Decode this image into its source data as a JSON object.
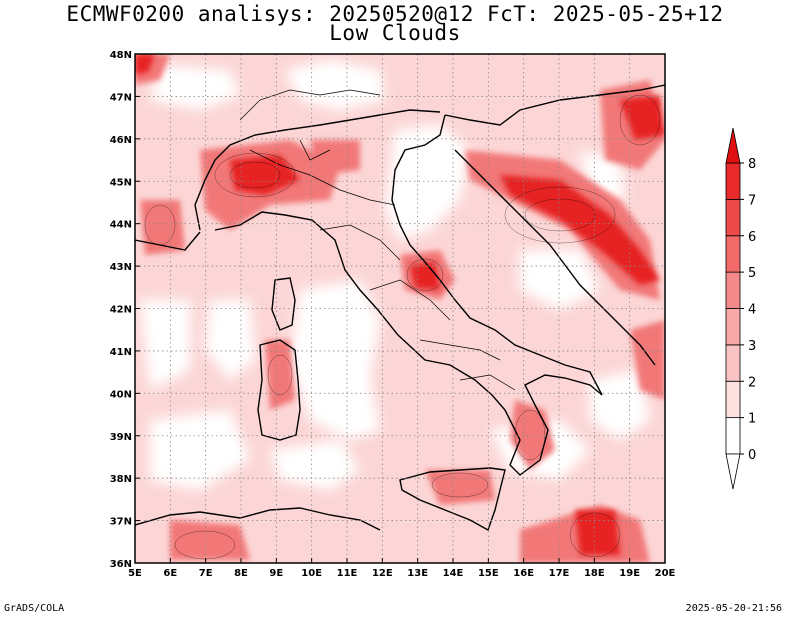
{
  "title": "ECMWF0200 analisys: 20250520@12 FcT: 2025-05-25+12",
  "subtitle": "Low Clouds",
  "credit": "GrADS/COLA",
  "timestamp": "2025-05-20-21:56",
  "map": {
    "lon_range": [
      5,
      20
    ],
    "lat_range": [
      36,
      48
    ],
    "lon_labels": [
      "5E",
      "6E",
      "7E",
      "8E",
      "9E",
      "10E",
      "11E",
      "12E",
      "13E",
      "14E",
      "15E",
      "16E",
      "17E",
      "18E",
      "19E",
      "20E"
    ],
    "lat_labels": [
      "36N",
      "37N",
      "38N",
      "39N",
      "40N",
      "41N",
      "42N",
      "43N",
      "44N",
      "45N",
      "46N",
      "47N",
      "48N"
    ],
    "grid": "dotted",
    "colors": {
      "land_outline": "#000000",
      "contour": "#000000"
    }
  },
  "colorbar": {
    "levels": [
      "0",
      "1",
      "2",
      "3",
      "4",
      "5",
      "6",
      "7",
      "8"
    ],
    "colors": [
      "#ffffff",
      "#fde0e0",
      "#fbc4c4",
      "#f8a8a8",
      "#f58a8a",
      "#f26a6a",
      "#ee4a4a",
      "#e92a2a",
      "#e01010"
    ],
    "placement": "right"
  }
}
